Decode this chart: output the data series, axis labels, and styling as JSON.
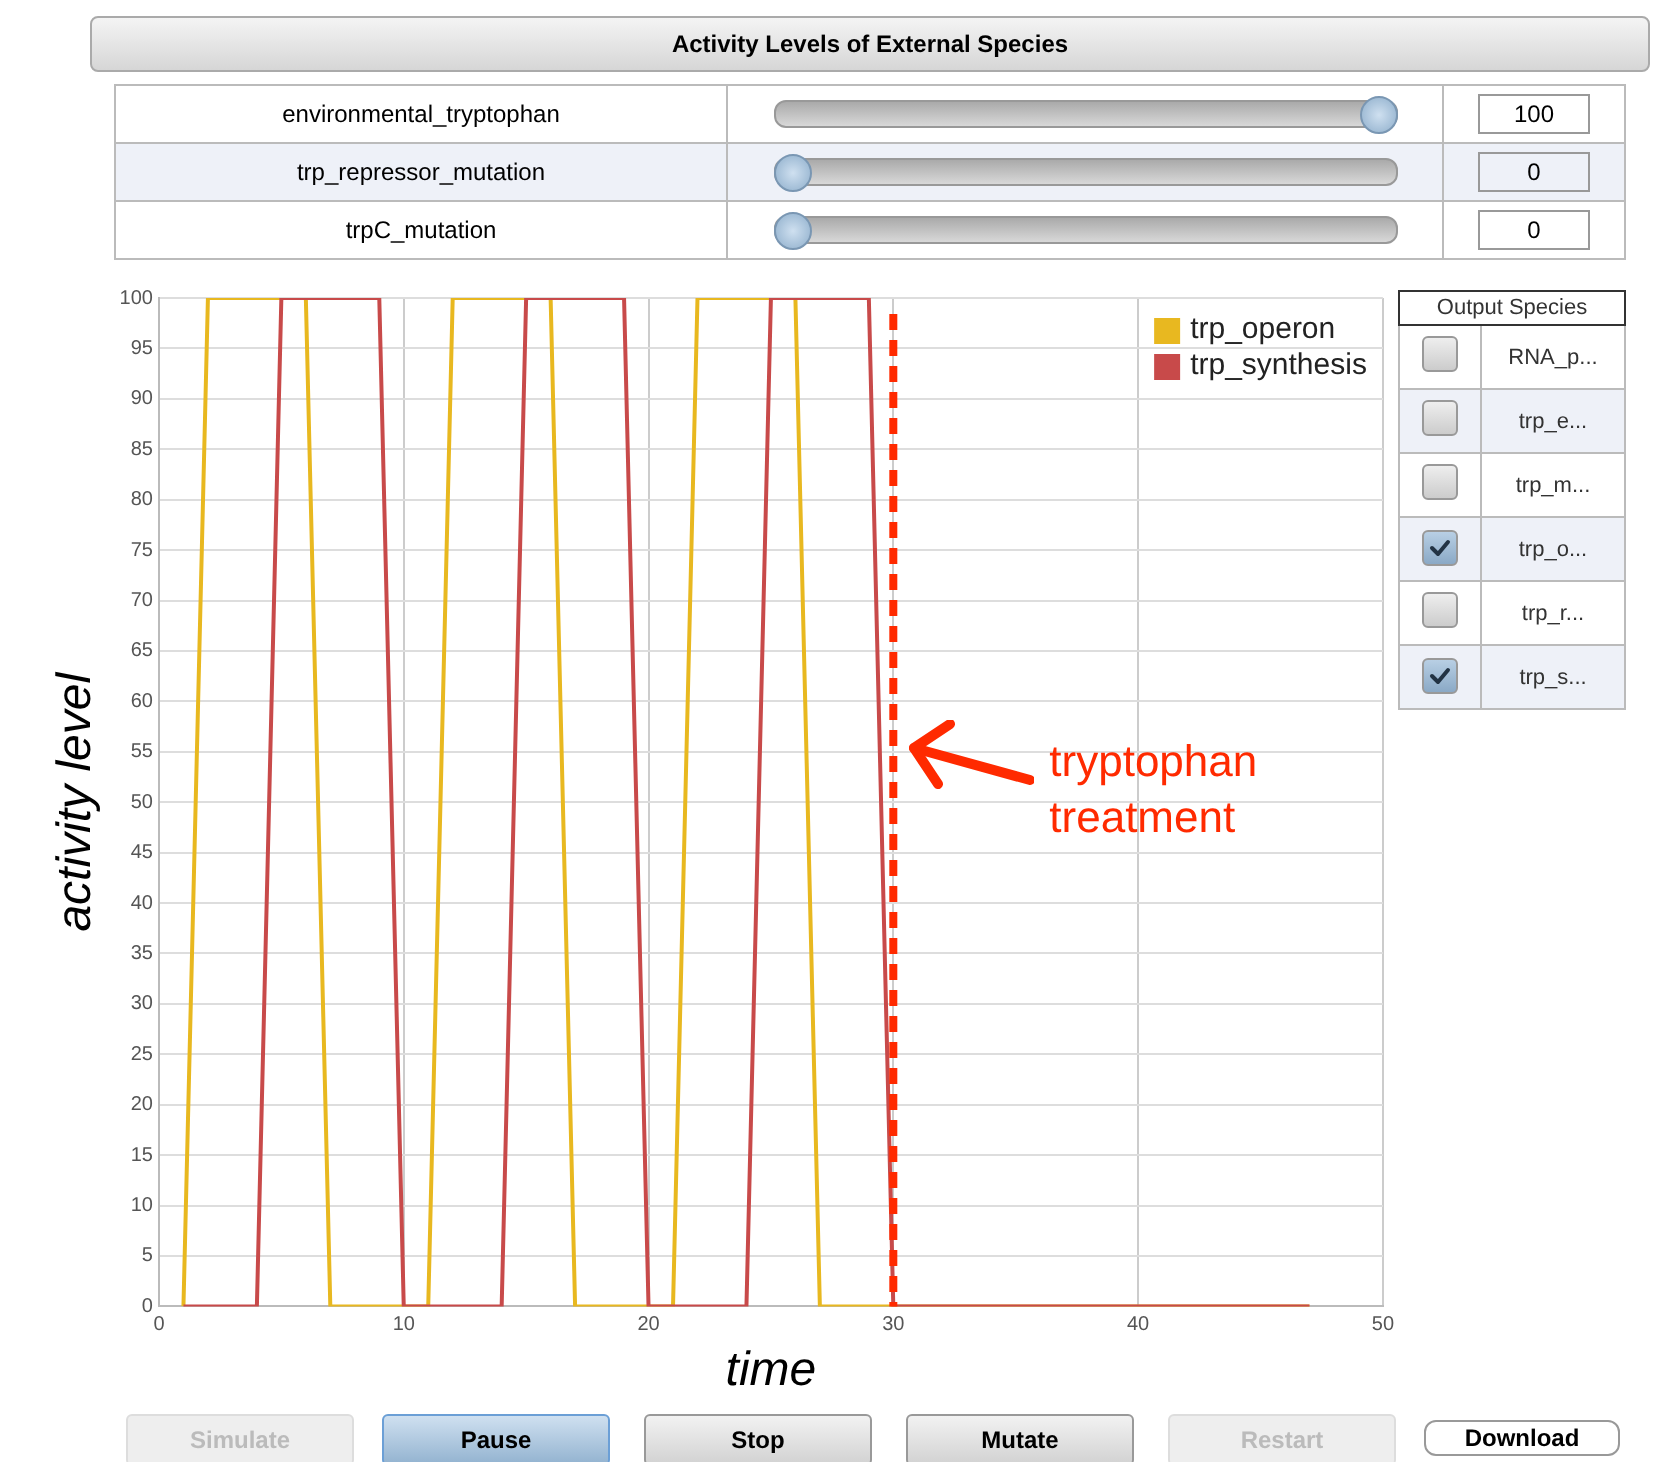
{
  "chart_data": {
    "type": "line",
    "xlabel": "time",
    "ylabel": "activity level",
    "xlim": [
      0,
      50
    ],
    "xticks": [
      0,
      10,
      20,
      30,
      40,
      50
    ],
    "ylim": [
      0,
      100
    ],
    "yticks": [
      0,
      5,
      10,
      15,
      20,
      25,
      30,
      35,
      40,
      45,
      50,
      55,
      60,
      65,
      70,
      75,
      80,
      85,
      90,
      95,
      100
    ],
    "grid": true,
    "legend": "top right",
    "marker": "none",
    "series": [
      {
        "name": "trp_operon",
        "color": "#e8b820",
        "x": [
          1,
          2,
          6,
          7,
          11,
          12,
          16,
          17,
          21,
          22,
          26,
          27,
          47
        ],
        "values": [
          0,
          100,
          100,
          0,
          0,
          100,
          100,
          0,
          0,
          100,
          100,
          0,
          0
        ]
      },
      {
        "name": "trp_synthesis",
        "color": "#c84a4a",
        "x": [
          1,
          4,
          5,
          9,
          10,
          14,
          15,
          19,
          20,
          24,
          25,
          29,
          30,
          47
        ],
        "values": [
          0,
          0,
          100,
          100,
          0,
          0,
          100,
          100,
          0,
          0,
          100,
          100,
          0,
          0
        ]
      }
    ],
    "ref_lines": [
      {
        "axis": "x",
        "value": 30,
        "label": "tryptophan treatment",
        "color": "#ff2a00",
        "line_style": "dashed"
      }
    ],
    "annotations": [
      "Activity Levels of External Species",
      "environmental_tryptophan",
      "100",
      "trp_repressor_mutation",
      "0",
      "trpC_mutation",
      "0",
      "Output Species",
      "RNA_p...",
      "trp_e...",
      "trp_m...",
      "trp_o...",
      "trp_r...",
      "trp_s...",
      "Simulate",
      "Pause",
      "Stop",
      "Mutate",
      "Restart",
      "Download"
    ]
  }
}
